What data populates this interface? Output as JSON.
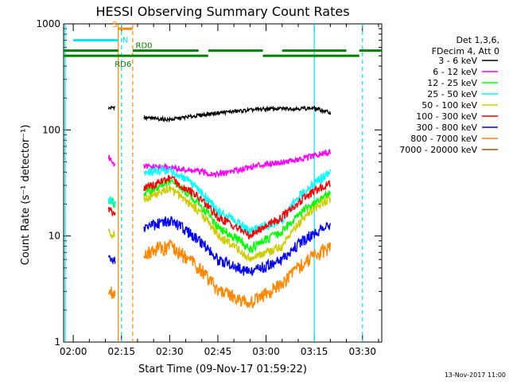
{
  "chart_data": {
    "type": "line",
    "title": "HESSI Observing Summary Count Rates",
    "xlabel": "Start Time (09-Nov-17 01:59:22)",
    "ylabel": "Count Rate (s⁻¹ detector⁻¹)",
    "y_scale": "log",
    "ylim": [
      1,
      1000
    ],
    "xlim_minutes": [
      -3,
      96
    ],
    "x_ticks": [
      {
        "label": "02:00",
        "t": 0
      },
      {
        "label": "02:15",
        "t": 15
      },
      {
        "label": "02:30",
        "t": 30
      },
      {
        "label": "02:45",
        "t": 45
      },
      {
        "label": "03:00",
        "t": 60
      },
      {
        "label": "03:15",
        "t": 75
      },
      {
        "label": "03:30",
        "t": 90
      }
    ],
    "y_ticks": [
      {
        "label": "1",
        "v": 1
      },
      {
        "label": "10",
        "v": 10
      },
      {
        "label": "100",
        "v": 100
      },
      {
        "label": "1000",
        "v": 1000
      }
    ],
    "legend_header": [
      "Det 1,3,6,",
      "FDecim 4, Att 0"
    ],
    "legend_position": "right",
    "series": [
      {
        "name": "3 - 6 keV",
        "color": "#000000",
        "seg1": [
          [
            11,
            160
          ],
          [
            13,
            165
          ]
        ],
        "seg2": [
          [
            22,
            130
          ],
          [
            30,
            125
          ],
          [
            45,
            145
          ],
          [
            60,
            158
          ],
          [
            75,
            160
          ],
          [
            80,
            145
          ]
        ]
      },
      {
        "name": "6 - 12 keV",
        "color": "#ff00ff",
        "seg1": [
          [
            11,
            55
          ],
          [
            13,
            48
          ]
        ],
        "seg2": [
          [
            22,
            45
          ],
          [
            30,
            44
          ],
          [
            45,
            38
          ],
          [
            60,
            48
          ],
          [
            70,
            52
          ],
          [
            80,
            62
          ]
        ]
      },
      {
        "name": "12 - 25 keV",
        "color": "#00ff00",
        "seg1": [
          [
            11,
            22
          ],
          [
            13,
            20
          ]
        ],
        "seg2": [
          [
            22,
            25
          ],
          [
            30,
            33
          ],
          [
            45,
            12
          ],
          [
            55,
            7.5
          ],
          [
            65,
            11
          ],
          [
            80,
            25
          ]
        ]
      },
      {
        "name": "25 - 50 keV",
        "color": "#00ffff",
        "seg1": [
          [
            11,
            22
          ],
          [
            13,
            20
          ]
        ],
        "seg2": [
          [
            22,
            40
          ],
          [
            30,
            42
          ],
          [
            45,
            17
          ],
          [
            55,
            11
          ],
          [
            65,
            14
          ],
          [
            80,
            40
          ]
        ]
      },
      {
        "name": "50 - 100 keV",
        "color": "#cccc00",
        "seg1": [
          [
            11,
            11
          ],
          [
            13,
            10
          ]
        ],
        "seg2": [
          [
            22,
            22
          ],
          [
            30,
            28
          ],
          [
            45,
            10
          ],
          [
            55,
            6
          ],
          [
            65,
            8
          ],
          [
            80,
            23
          ]
        ]
      },
      {
        "name": "100 - 300 keV",
        "color": "#ff0000",
        "seg1": [
          [
            11,
            18
          ],
          [
            13,
            16
          ]
        ],
        "seg2": [
          [
            22,
            28
          ],
          [
            30,
            35
          ],
          [
            45,
            15
          ],
          [
            55,
            10
          ],
          [
            65,
            15
          ],
          [
            80,
            32
          ]
        ]
      },
      {
        "name": "300 - 800 keV",
        "color": "#0000ff",
        "seg1": [
          [
            11,
            6
          ],
          [
            13,
            6
          ]
        ],
        "seg2": [
          [
            22,
            12
          ],
          [
            30,
            14
          ],
          [
            45,
            6
          ],
          [
            55,
            4.5
          ],
          [
            65,
            6
          ],
          [
            80,
            13
          ]
        ]
      },
      {
        "name": "800 - 7000 keV",
        "color": "#ff8800",
        "seg1": [
          [
            11,
            3
          ],
          [
            13,
            3
          ]
        ],
        "seg2": [
          [
            22,
            7
          ],
          [
            30,
            8
          ],
          [
            45,
            3
          ],
          [
            55,
            2.3
          ],
          [
            65,
            3.5
          ],
          [
            80,
            8
          ]
        ]
      },
      {
        "name": "7000 - 20000 keV",
        "color": "#a05000",
        "seg1": [],
        "seg2": []
      }
    ],
    "flags": [
      {
        "label": "S",
        "color": "#ff8800",
        "t1": 14,
        "t2": 18.5,
        "level": 900
      },
      {
        "label": "N",
        "color": "#00e5ee",
        "t1": 0,
        "t2": 14,
        "level": 700
      },
      {
        "label": "RD0",
        "color": "#008000",
        "segments": [
          [
            -3,
            14
          ],
          [
            18.5,
            39
          ],
          [
            42,
            59
          ],
          [
            65,
            85
          ],
          [
            89,
            96
          ]
        ],
        "level": 560
      },
      {
        "label": "RD6",
        "color": "#008000",
        "segments": [
          [
            -3,
            42
          ],
          [
            59,
            89
          ]
        ],
        "level": 500
      }
    ],
    "markers": [
      {
        "t": 14,
        "color": "#ff8800",
        "style": "solid"
      },
      {
        "t": 15,
        "color": "#00e5ee",
        "style": "dashed"
      },
      {
        "t": 18.5,
        "color": "#ff8800",
        "style": "dashed"
      },
      {
        "t": 75,
        "color": "#00e5ee",
        "style": "solid"
      },
      {
        "t": 90,
        "color": "#00e5ee",
        "style": "dashed"
      },
      {
        "t": -2.5,
        "color": "#00e5ee",
        "style": "solid"
      }
    ],
    "footer": "13-Nov-2017 11:00"
  }
}
